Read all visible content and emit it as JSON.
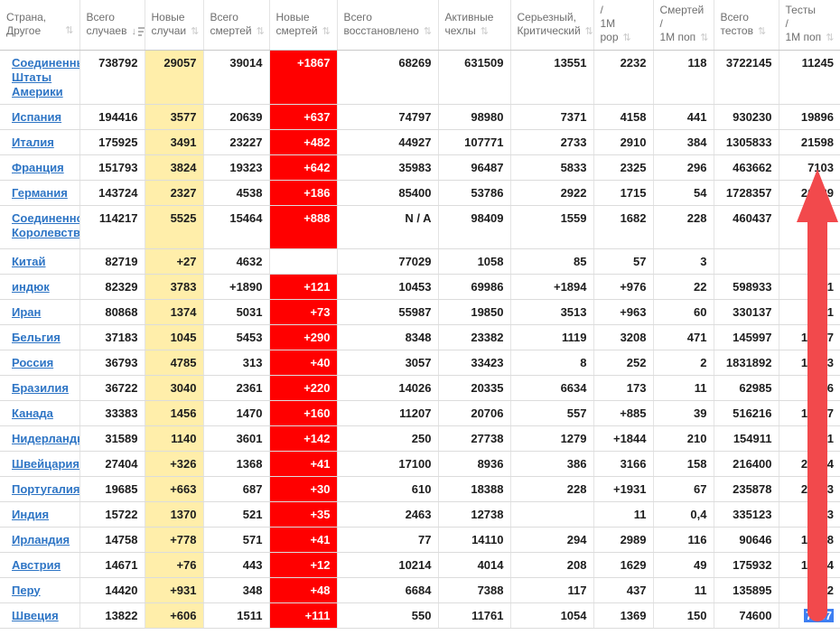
{
  "colors": {
    "new_cases_bg": "#FFEEAA",
    "new_deaths_bg": "#FF0000",
    "selection_bg": "#3E7FF2",
    "arrow": "#F2494C",
    "link": "#2E75C5"
  },
  "icons": {
    "sort_both": "⇅",
    "sort_desc_arrow": "↓"
  },
  "header": {
    "columns": [
      {
        "id": "country",
        "label": "Страна, Другое",
        "lines": [
          "Страна,",
          "Другое"
        ],
        "sort": "unsorted"
      },
      {
        "id": "total_cases",
        "label": "Всего случаев",
        "lines": [
          "Всего",
          "случаев"
        ],
        "sort": "desc"
      },
      {
        "id": "new_cases",
        "label": "Новые случаи",
        "lines": [
          "Новые",
          "случаи"
        ],
        "sort": "unsorted"
      },
      {
        "id": "total_deaths",
        "label": "Всего смертей",
        "lines": [
          "Всего",
          "смертей"
        ],
        "sort": "unsorted"
      },
      {
        "id": "new_deaths",
        "label": "Новые смертей",
        "lines": [
          "Новые",
          "смертей"
        ],
        "sort": "unsorted"
      },
      {
        "id": "total_recovered",
        "label": "Всего восстановлено",
        "lines": [
          "Всего",
          "восстановлено"
        ],
        "sort": "unsorted"
      },
      {
        "id": "active_cases",
        "label": "Активные чехлы",
        "lines": [
          "Активные",
          "чехлы"
        ],
        "sort": "unsorted"
      },
      {
        "id": "serious_critical",
        "label": "Серьезный, Критический",
        "lines": [
          "Серьезный,",
          "Критический"
        ],
        "sort": "unsorted"
      },
      {
        "id": "cases_per_1m",
        "label": "/ 1M pop",
        "lines": [
          "/",
          "1M",
          "pop"
        ],
        "sort": "unsorted"
      },
      {
        "id": "deaths_per_1m",
        "label": "Смертей / 1M поп",
        "lines": [
          "Смертей",
          "/",
          "1M поп"
        ],
        "sort": "unsorted"
      },
      {
        "id": "total_tests",
        "label": "Всего тестов",
        "lines": [
          "Всего",
          "тестов"
        ],
        "sort": "unsorted"
      },
      {
        "id": "tests_per_1m",
        "label": "Тесты / 1M поп",
        "lines": [
          "Тесты",
          "/",
          "1M поп"
        ],
        "sort": "unsorted"
      }
    ]
  },
  "rows": [
    {
      "country": "Соединенные Штаты Америки",
      "total_cases": "738792",
      "new_cases": "29057",
      "total_deaths": "39014",
      "new_deaths": "+1867",
      "total_recovered": "68269",
      "active_cases": "631509",
      "serious_critical": "13551",
      "cases_per_1m": "2232",
      "deaths_per_1m": "118",
      "total_tests": "3722145",
      "tests_per_1m": "11245"
    },
    {
      "country": "Испания",
      "total_cases": "194416",
      "new_cases": "3577",
      "total_deaths": "20639",
      "new_deaths": "+637",
      "total_recovered": "74797",
      "active_cases": "98980",
      "serious_critical": "7371",
      "cases_per_1m": "4158",
      "deaths_per_1m": "441",
      "total_tests": "930230",
      "tests_per_1m": "19896"
    },
    {
      "country": "Италия",
      "total_cases": "175925",
      "new_cases": "3491",
      "total_deaths": "23227",
      "new_deaths": "+482",
      "total_recovered": "44927",
      "active_cases": "107771",
      "serious_critical": "2733",
      "cases_per_1m": "2910",
      "deaths_per_1m": "384",
      "total_tests": "1305833",
      "tests_per_1m": "21598"
    },
    {
      "country": "Франция",
      "total_cases": "151793",
      "new_cases": "3824",
      "total_deaths": "19323",
      "new_deaths": "+642",
      "total_recovered": "35983",
      "active_cases": "96487",
      "serious_critical": "5833",
      "cases_per_1m": "2325",
      "deaths_per_1m": "296",
      "total_tests": "463662",
      "tests_per_1m": "7103"
    },
    {
      "country": "Германия",
      "total_cases": "143724",
      "new_cases": "2327",
      "total_deaths": "4538",
      "new_deaths": "+186",
      "total_recovered": "85400",
      "active_cases": "53786",
      "serious_critical": "2922",
      "cases_per_1m": "1715",
      "deaths_per_1m": "54",
      "total_tests": "1728357",
      "tests_per_1m": "20629"
    },
    {
      "country": "Соединенное Королевство",
      "total_cases": "114217",
      "new_cases": "5525",
      "total_deaths": "15464",
      "new_deaths": "+888",
      "total_recovered": "N / A",
      "active_cases": "98409",
      "serious_critical": "1559",
      "cases_per_1m": "1682",
      "deaths_per_1m": "228",
      "total_tests": "460437",
      "tests_per_1m": "6783"
    },
    {
      "country": "Китай",
      "total_cases": "82719",
      "new_cases": "+27",
      "total_deaths": "4632",
      "new_deaths": "",
      "total_recovered": "77029",
      "active_cases": "1058",
      "serious_critical": "85",
      "cases_per_1m": "57",
      "deaths_per_1m": "3",
      "total_tests": "",
      "tests_per_1m": ""
    },
    {
      "country": "индюк",
      "total_cases": "82329",
      "new_cases": "3783",
      "total_deaths": "+1890",
      "new_deaths": "+121",
      "total_recovered": "10453",
      "active_cases": "69986",
      "serious_critical": "+1894",
      "cases_per_1m": "+976",
      "deaths_per_1m": "22",
      "total_tests": "598933",
      "tests_per_1m": "7101"
    },
    {
      "country": "Иран",
      "total_cases": "80868",
      "new_cases": "1374",
      "total_deaths": "5031",
      "new_deaths": "+73",
      "total_recovered": "55987",
      "active_cases": "19850",
      "serious_critical": "3513",
      "cases_per_1m": "+963",
      "deaths_per_1m": "60",
      "total_tests": "330137",
      "tests_per_1m": "3931"
    },
    {
      "country": "Бельгия",
      "total_cases": "37183",
      "new_cases": "1045",
      "total_deaths": "5453",
      "new_deaths": "+290",
      "total_recovered": "8348",
      "active_cases": "23382",
      "serious_critical": "1119",
      "cases_per_1m": "3208",
      "deaths_per_1m": "471",
      "total_tests": "145997",
      "tests_per_1m": "12597"
    },
    {
      "country": "Россия",
      "total_cases": "36793",
      "new_cases": "4785",
      "total_deaths": "313",
      "new_deaths": "+40",
      "total_recovered": "3057",
      "active_cases": "33423",
      "serious_critical": "8",
      "cases_per_1m": "252",
      "deaths_per_1m": "2",
      "total_tests": "1831892",
      "tests_per_1m": "12553"
    },
    {
      "country": "Бразилия",
      "total_cases": "36722",
      "new_cases": "3040",
      "total_deaths": "2361",
      "new_deaths": "+220",
      "total_recovered": "14026",
      "active_cases": "20335",
      "serious_critical": "6634",
      "cases_per_1m": "173",
      "deaths_per_1m": "11",
      "total_tests": "62985",
      "tests_per_1m": "296"
    },
    {
      "country": "Канада",
      "total_cases": "33383",
      "new_cases": "1456",
      "total_deaths": "1470",
      "new_deaths": "+160",
      "total_recovered": "11207",
      "active_cases": "20706",
      "serious_critical": "557",
      "cases_per_1m": "+885",
      "deaths_per_1m": "39",
      "total_tests": "516216",
      "tests_per_1m": "13677"
    },
    {
      "country": "Нидерланды",
      "total_cases": "31589",
      "new_cases": "1140",
      "total_deaths": "3601",
      "new_deaths": "+142",
      "total_recovered": "250",
      "active_cases": "27738",
      "serious_critical": "1279",
      "cases_per_1m": "+1844",
      "deaths_per_1m": "210",
      "total_tests": "154911",
      "tests_per_1m": "9041"
    },
    {
      "country": "Швейцария",
      "total_cases": "27404",
      "new_cases": "+326",
      "total_deaths": "1368",
      "new_deaths": "+41",
      "total_recovered": "17100",
      "active_cases": "8936",
      "serious_critical": "386",
      "cases_per_1m": "3166",
      "deaths_per_1m": "158",
      "total_tests": "216400",
      "tests_per_1m": "25004"
    },
    {
      "country": "Португалия",
      "total_cases": "19685",
      "new_cases": "+663",
      "total_deaths": "687",
      "new_deaths": "+30",
      "total_recovered": "610",
      "active_cases": "18388",
      "serious_critical": "228",
      "cases_per_1m": "+1931",
      "deaths_per_1m": "67",
      "total_tests": "235878",
      "tests_per_1m": "23133"
    },
    {
      "country": "Индия",
      "total_cases": "15722",
      "new_cases": "1370",
      "total_deaths": "521",
      "new_deaths": "+35",
      "total_recovered": "2463",
      "active_cases": "12738",
      "serious_critical": "",
      "cases_per_1m": "11",
      "deaths_per_1m": "0,4",
      "total_tests": "335123",
      "tests_per_1m": "243"
    },
    {
      "country": "Ирландия",
      "total_cases": "14758",
      "new_cases": "+778",
      "total_deaths": "571",
      "new_deaths": "+41",
      "total_recovered": "77",
      "active_cases": "14110",
      "serious_critical": "294",
      "cases_per_1m": "2989",
      "deaths_per_1m": "116",
      "total_tests": "90646",
      "tests_per_1m": "18358"
    },
    {
      "country": "Австрия",
      "total_cases": "14671",
      "new_cases": "+76",
      "total_deaths": "443",
      "new_deaths": "+12",
      "total_recovered": "10214",
      "active_cases": "4014",
      "serious_critical": "208",
      "cases_per_1m": "1629",
      "deaths_per_1m": "49",
      "total_tests": "175932",
      "tests_per_1m": "19534"
    },
    {
      "country": "Перу",
      "total_cases": "14420",
      "new_cases": "+931",
      "total_deaths": "348",
      "new_deaths": "+48",
      "total_recovered": "6684",
      "active_cases": "7388",
      "serious_critical": "117",
      "cases_per_1m": "437",
      "deaths_per_1m": "11",
      "total_tests": "135895",
      "tests_per_1m": "4122"
    },
    {
      "country": "Швеция",
      "total_cases": "13822",
      "new_cases": "+606",
      "total_deaths": "1511",
      "new_deaths": "+111",
      "total_recovered": "550",
      "active_cases": "11761",
      "serious_critical": "1054",
      "cases_per_1m": "1369",
      "deaths_per_1m": "150",
      "total_tests": "74600",
      "tests_per_1m": "7387"
    }
  ],
  "selection": {
    "row_index": 20,
    "column_id": "tests_per_1m"
  }
}
